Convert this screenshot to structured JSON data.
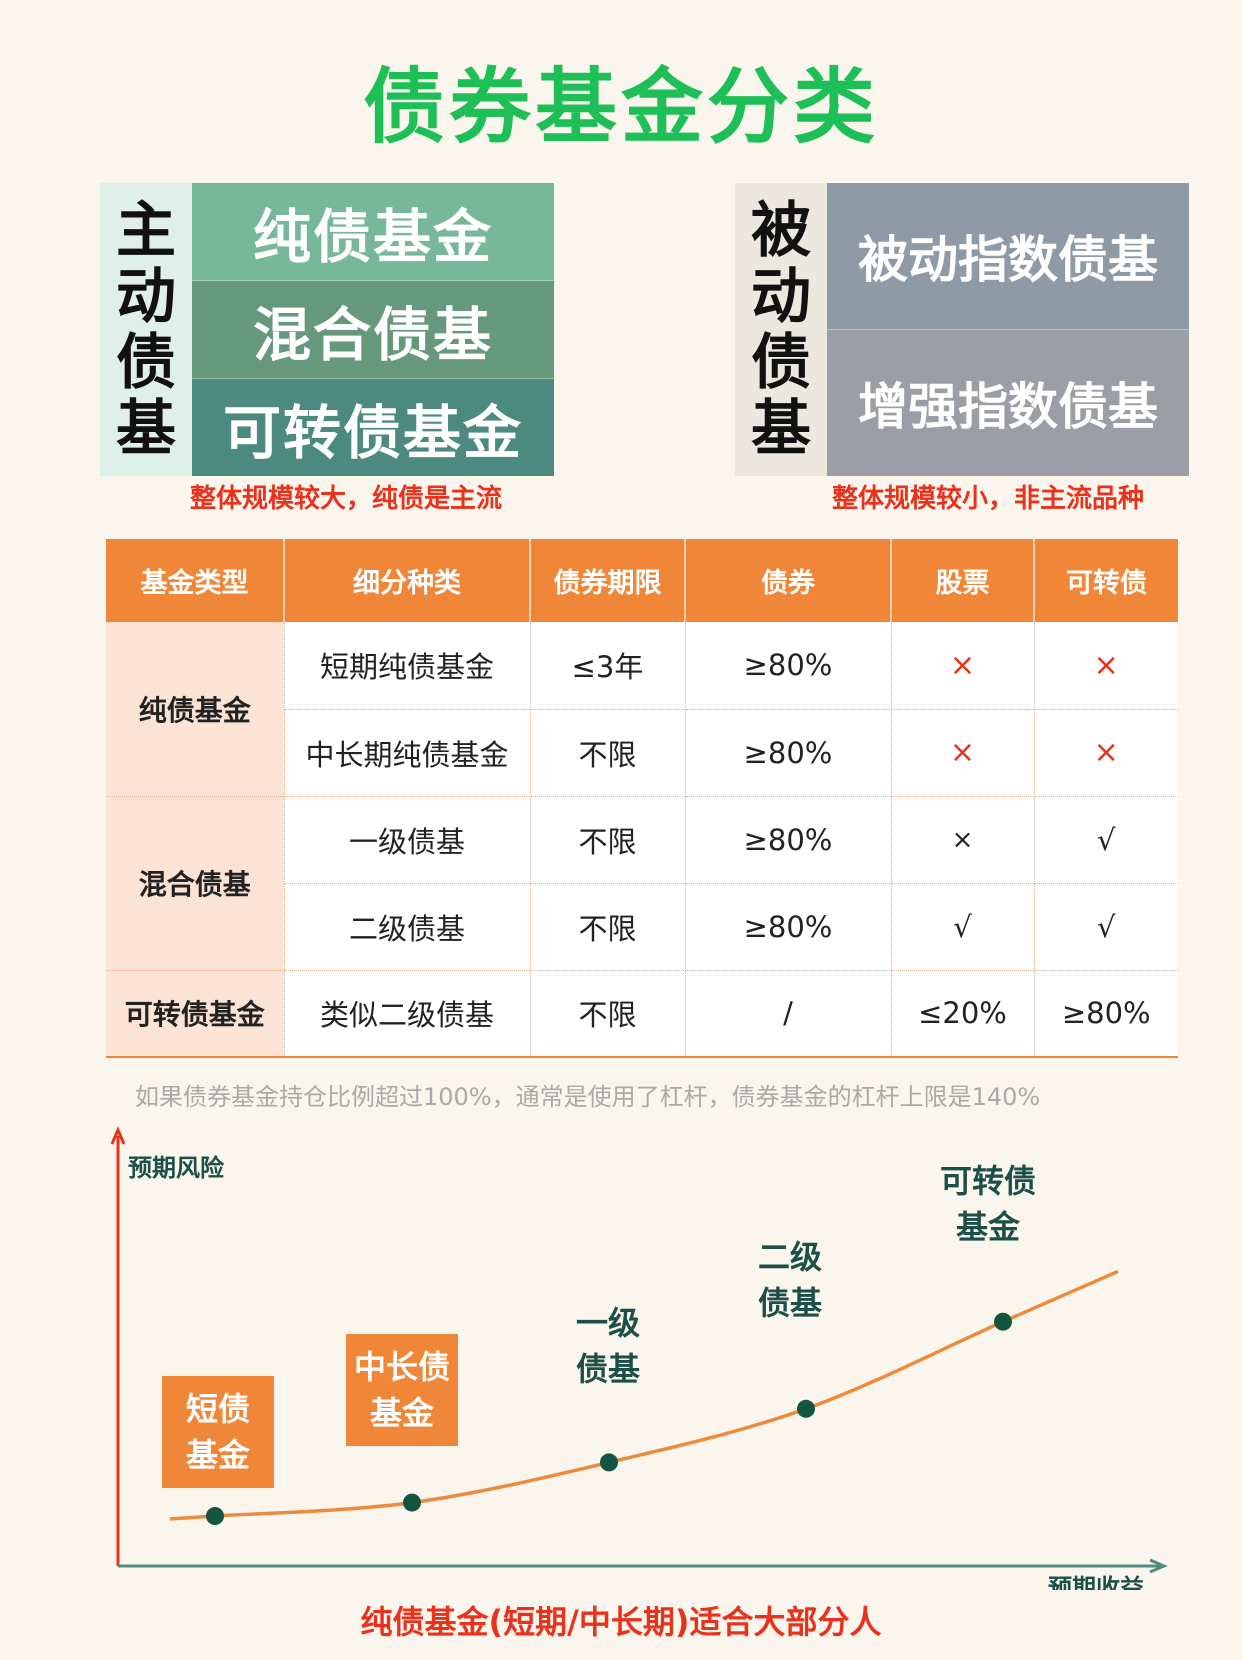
{
  "title": "债券基金分类",
  "active": {
    "label": [
      "主",
      "动",
      "债",
      "基"
    ],
    "items": [
      "纯债基金",
      "混合债基",
      "可转债基金"
    ],
    "note": "整体规模较大，纯债是主流"
  },
  "passive": {
    "label": [
      "被",
      "动",
      "债",
      "基"
    ],
    "items": [
      "被动指数债基",
      "增强指数债基"
    ],
    "note": "整体规模较小，非主流品种"
  },
  "table": {
    "headers": [
      "基金类型",
      "细分种类",
      "债券期限",
      "债券",
      "股票",
      "可转债"
    ],
    "groups": {
      "pure": "纯债基金",
      "mixed": "混合债基",
      "convertible": "可转债基金"
    },
    "rows": [
      [
        "短期纯债基金",
        "≤3年",
        "≥80%",
        "×",
        "×"
      ],
      [
        "中长期纯债基金",
        "不限",
        "≥80%",
        "×",
        "×"
      ],
      [
        "一级债基",
        "不限",
        "≥80%",
        "×",
        "√"
      ],
      [
        "二级债基",
        "不限",
        "≥80%",
        "√",
        "√"
      ],
      [
        "类似二级债基",
        "不限",
        "/",
        "≤20%",
        "≥80%"
      ]
    ]
  },
  "footnote": "如果债券基金持仓比例超过100%，通常是使用了杠杆，债券基金的杠杆上限是140%",
  "chart_data": {
    "type": "line",
    "ylabel": "预期风险",
    "xlabel": "预期收益",
    "points": [
      {
        "label": [
          "短债",
          "基金"
        ],
        "x": 1,
        "y": 1.0,
        "boxed": true
      },
      {
        "label": [
          "中长债",
          "基金"
        ],
        "x": 2,
        "y": 1.4,
        "boxed": true
      },
      {
        "label": [
          "一级",
          "债基"
        ],
        "x": 3,
        "y": 2.6,
        "boxed": false
      },
      {
        "label": [
          "二级",
          "债基"
        ],
        "x": 4,
        "y": 4.2,
        "boxed": false
      },
      {
        "label": [
          "可转债",
          "基金"
        ],
        "x": 5,
        "y": 6.8,
        "boxed": false
      }
    ],
    "colors": {
      "curve": "#ee8a3c",
      "axis_y": "#e8321c",
      "axis_x": "#4e8e82",
      "dot": "#135540",
      "box": "#ef8638",
      "label": "#1b4f47"
    }
  },
  "slogan": "纯债基金(短期/中长期)适合大部分人"
}
